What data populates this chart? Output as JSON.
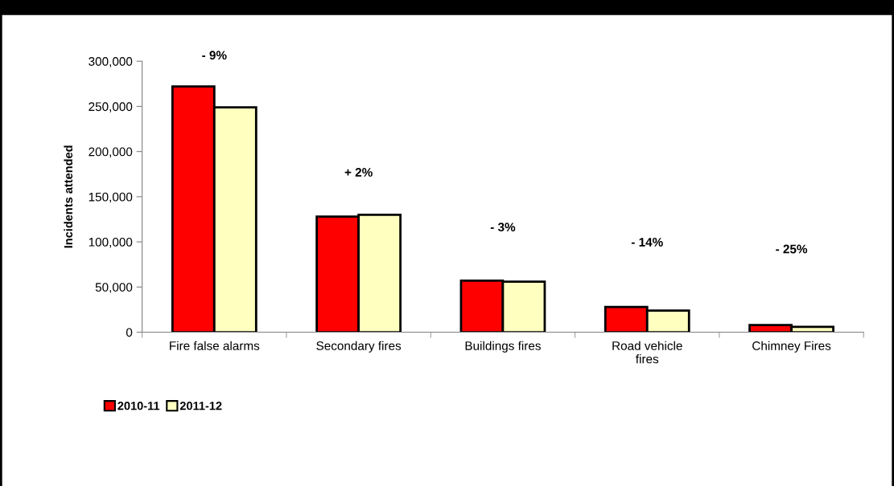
{
  "chart_data": {
    "type": "bar",
    "ylabel": "Incidents attended",
    "categories": [
      "Fire false alarms",
      "Secondary fires",
      "Buildings fires",
      "Road vehicle\nfires",
      "Chimney Fires"
    ],
    "series": [
      {
        "name": "2010-11",
        "color": "#ff0000",
        "values": [
          272000,
          128000,
          57000,
          28000,
          8000
        ]
      },
      {
        "name": "2011-12",
        "color": "#ffffc0",
        "values": [
          249000,
          130000,
          56000,
          24000,
          6000
        ]
      }
    ],
    "ylim": [
      0,
      300000
    ],
    "yticks": [
      {
        "value": 0,
        "label": "0"
      },
      {
        "value": 50000,
        "label": "50,000"
      },
      {
        "value": 100000,
        "label": "100,000"
      },
      {
        "value": 150000,
        "label": "150,000"
      },
      {
        "value": 200000,
        "label": "200,000"
      },
      {
        "value": 250000,
        "label": "250,000"
      },
      {
        "value": 300000,
        "label": "300,000"
      }
    ],
    "annotations": [
      "- 9%",
      "+ 2%",
      "- 3%",
      "- 14%",
      "- 25%"
    ],
    "legend": "bottom left",
    "grid": false
  }
}
